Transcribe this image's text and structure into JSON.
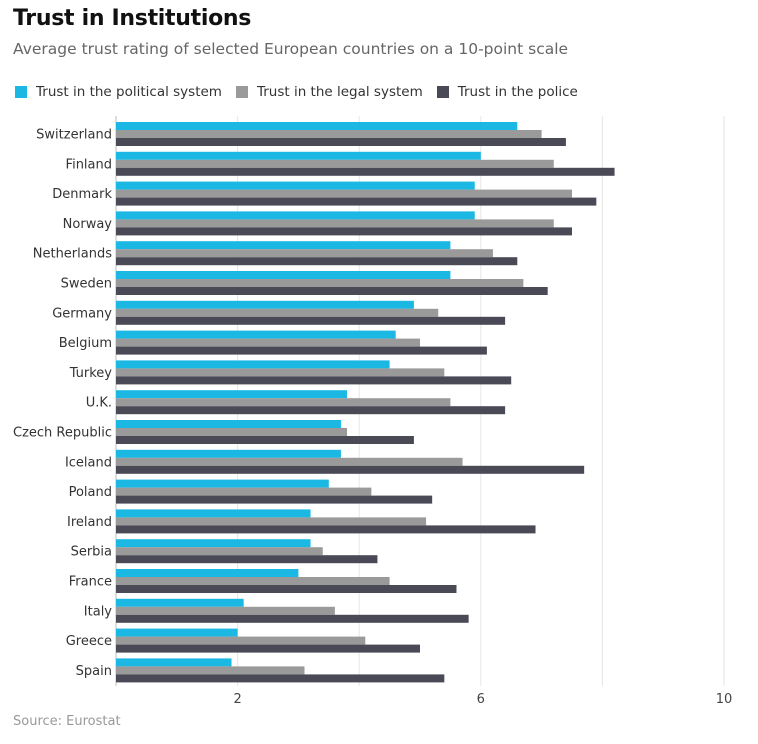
{
  "header": {
    "title": "Trust in Institutions",
    "subtitle": "Average trust rating of selected European countries on a 10-point scale"
  },
  "source": "Source: Eurostat",
  "colors": {
    "political": "#1bb8e3",
    "legal": "#9a9a9a",
    "police": "#4a4956",
    "grid": "#e6e6e6",
    "axis": "#bdbdbd"
  },
  "chart_data": {
    "type": "bar",
    "orientation": "horizontal",
    "title": "Trust in Institutions",
    "subtitle": "Average trust rating of selected European countries on a 10-point scale",
    "xlim": [
      0,
      10
    ],
    "xticks": [
      2,
      6,
      10
    ],
    "xlabel": "",
    "ylabel": "",
    "grid": true,
    "legend_position": "top-left",
    "categories": [
      "Switzerland",
      "Finland",
      "Denmark",
      "Norway",
      "Netherlands",
      "Sweden",
      "Germany",
      "Belgium",
      "Turkey",
      "U.K.",
      "Czech Republic",
      "Iceland",
      "Poland",
      "Ireland",
      "Serbia",
      "France",
      "Italy",
      "Greece",
      "Spain"
    ],
    "series": [
      {
        "name": "Trust in the political system",
        "color_key": "political",
        "values": [
          6.6,
          6.0,
          5.9,
          5.9,
          5.5,
          5.5,
          4.9,
          4.6,
          4.5,
          3.8,
          3.7,
          3.7,
          3.5,
          3.2,
          3.2,
          3.0,
          2.1,
          2.0,
          1.9
        ]
      },
      {
        "name": "Trust in the legal system",
        "color_key": "legal",
        "values": [
          7.0,
          7.2,
          7.5,
          7.2,
          6.2,
          6.7,
          5.3,
          5.0,
          5.4,
          5.5,
          3.8,
          5.7,
          4.2,
          5.1,
          3.4,
          4.5,
          3.6,
          4.1,
          3.1
        ]
      },
      {
        "name": "Trust in the police",
        "color_key": "police",
        "values": [
          7.4,
          8.2,
          7.9,
          7.5,
          6.6,
          7.1,
          6.4,
          6.1,
          6.5,
          6.4,
          4.9,
          7.7,
          5.2,
          6.9,
          4.3,
          5.6,
          5.8,
          5.0,
          5.4
        ]
      }
    ]
  }
}
